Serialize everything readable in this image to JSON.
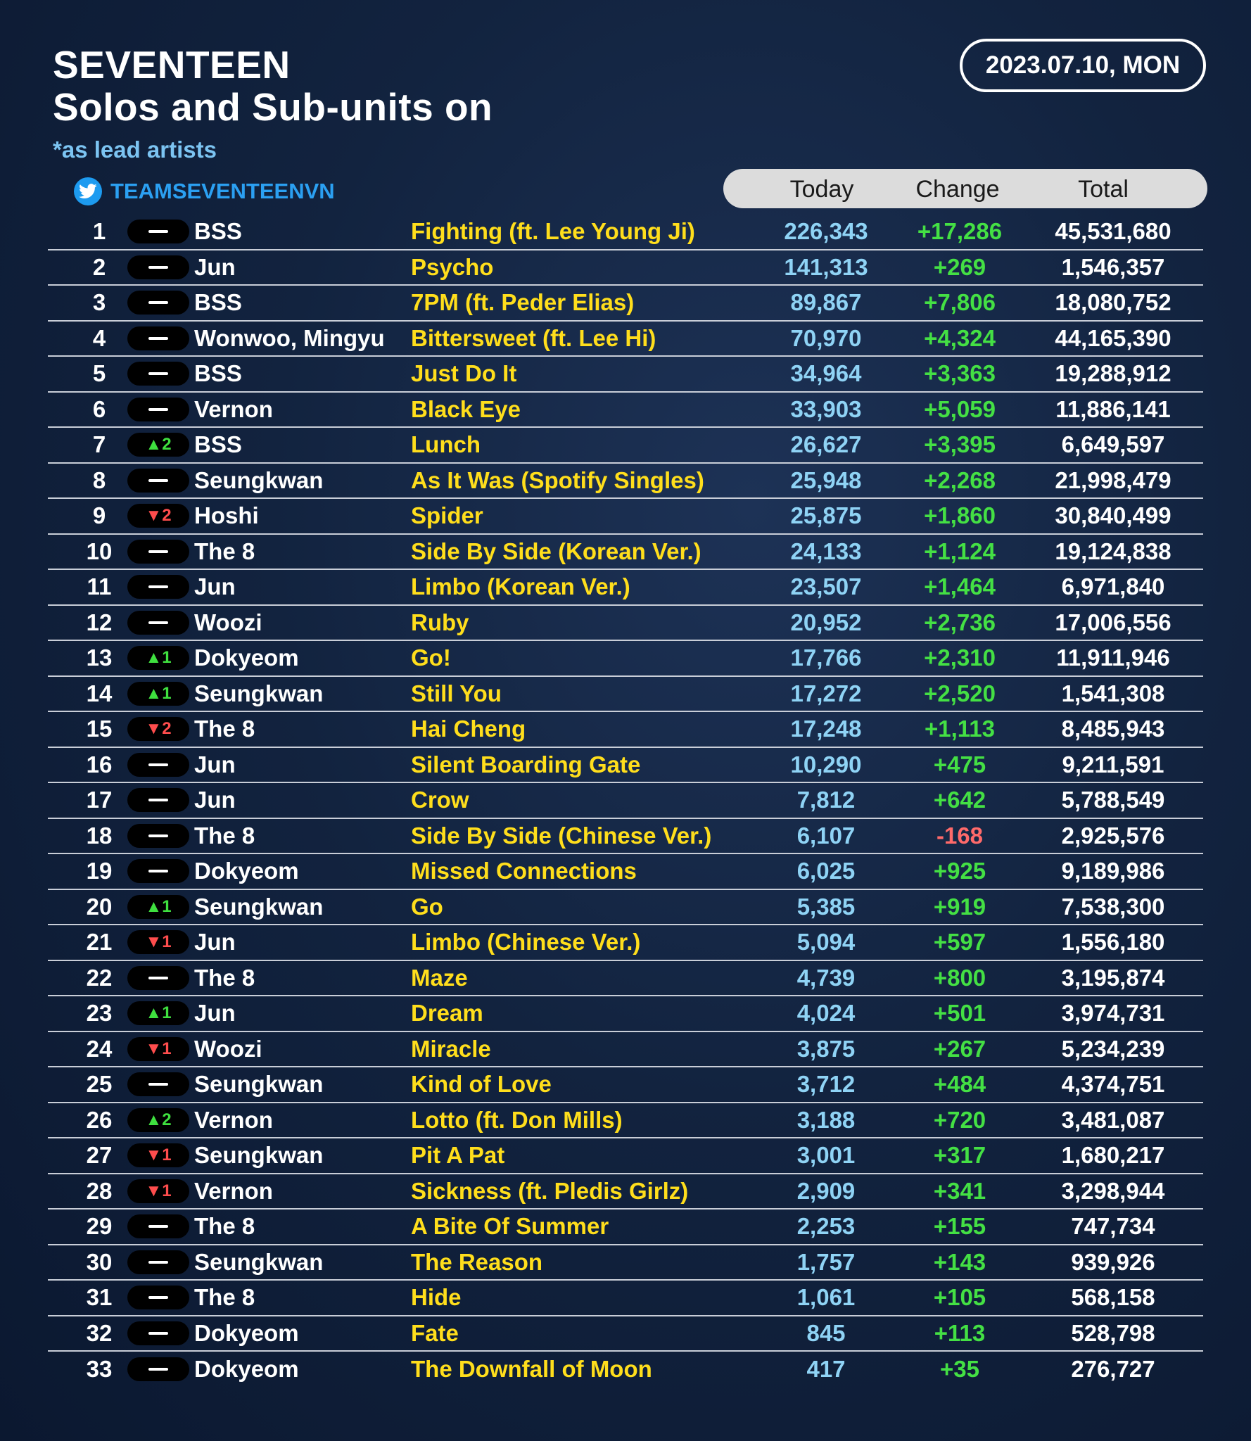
{
  "title": {
    "line1": "SEVENTEEN",
    "line2": "Solos and Sub-units on",
    "note": "*as lead artists"
  },
  "date": "2023.07.10, MON",
  "handle": {
    "icon": "twitter-bird-icon",
    "text": "TEAMSEVENTEENVN"
  },
  "columns": {
    "today": "Today",
    "change": "Change",
    "total": "Total"
  },
  "colors": {
    "song": "#ffde1c",
    "today": "#8fd3f5",
    "change_pos": "#44e044",
    "change_neg": "#ff6a6a",
    "move_up": "#3fe03f",
    "move_down": "#ff4d4d"
  },
  "rows": [
    {
      "rank": "1",
      "move": "",
      "artist": "BSS",
      "song": "Fighting (ft. Lee Young Ji)",
      "today": "226,343",
      "change": "+17,286",
      "total": "45,531,680"
    },
    {
      "rank": "2",
      "move": "",
      "artist": "Jun",
      "song": "Psycho",
      "today": "141,313",
      "change": "+269",
      "total": "1,546,357"
    },
    {
      "rank": "3",
      "move": "",
      "artist": "BSS",
      "song": "7PM (ft. Peder Elias)",
      "today": "89,867",
      "change": "+7,806",
      "total": "18,080,752"
    },
    {
      "rank": "4",
      "move": "",
      "artist": "Wonwoo, Mingyu",
      "song": "Bittersweet (ft. Lee Hi)",
      "today": "70,970",
      "change": "+4,324",
      "total": "44,165,390"
    },
    {
      "rank": "5",
      "move": "",
      "artist": "BSS",
      "song": "Just Do It",
      "today": "34,964",
      "change": "+3,363",
      "total": "19,288,912"
    },
    {
      "rank": "6",
      "move": "",
      "artist": "Vernon",
      "song": "Black Eye",
      "today": "33,903",
      "change": "+5,059",
      "total": "11,886,141"
    },
    {
      "rank": "7",
      "move": "▲2",
      "artist": "BSS",
      "song": "Lunch",
      "today": "26,627",
      "change": "+3,395",
      "total": "6,649,597"
    },
    {
      "rank": "8",
      "move": "",
      "artist": "Seungkwan",
      "song": "As It Was (Spotify Singles)",
      "today": "25,948",
      "change": "+2,268",
      "total": "21,998,479"
    },
    {
      "rank": "9",
      "move": "▼2",
      "artist": "Hoshi",
      "song": "Spider",
      "today": "25,875",
      "change": "+1,860",
      "total": "30,840,499"
    },
    {
      "rank": "10",
      "move": "",
      "artist": "The 8",
      "song": "Side By Side (Korean Ver.)",
      "today": "24,133",
      "change": "+1,124",
      "total": "19,124,838"
    },
    {
      "rank": "11",
      "move": "",
      "artist": "Jun",
      "song": "Limbo (Korean Ver.)",
      "today": "23,507",
      "change": "+1,464",
      "total": "6,971,840"
    },
    {
      "rank": "12",
      "move": "",
      "artist": "Woozi",
      "song": "Ruby",
      "today": "20,952",
      "change": "+2,736",
      "total": "17,006,556"
    },
    {
      "rank": "13",
      "move": "▲1",
      "artist": "Dokyeom",
      "song": "Go!",
      "today": "17,766",
      "change": "+2,310",
      "total": "11,911,946"
    },
    {
      "rank": "14",
      "move": "▲1",
      "artist": "Seungkwan",
      "song": "Still You",
      "today": "17,272",
      "change": "+2,520",
      "total": "1,541,308"
    },
    {
      "rank": "15",
      "move": "▼2",
      "artist": "The 8",
      "song": "Hai Cheng",
      "today": "17,248",
      "change": "+1,113",
      "total": "8,485,943"
    },
    {
      "rank": "16",
      "move": "",
      "artist": "Jun",
      "song": "Silent Boarding Gate",
      "today": "10,290",
      "change": "+475",
      "total": "9,211,591"
    },
    {
      "rank": "17",
      "move": "",
      "artist": "Jun",
      "song": "Crow",
      "today": "7,812",
      "change": "+642",
      "total": "5,788,549"
    },
    {
      "rank": "18",
      "move": "",
      "artist": "The 8",
      "song": "Side By Side (Chinese Ver.)",
      "today": "6,107",
      "change": "-168",
      "total": "2,925,576"
    },
    {
      "rank": "19",
      "move": "",
      "artist": "Dokyeom",
      "song": "Missed Connections",
      "today": "6,025",
      "change": "+925",
      "total": "9,189,986"
    },
    {
      "rank": "20",
      "move": "▲1",
      "artist": "Seungkwan",
      "song": "Go",
      "today": "5,385",
      "change": "+919",
      "total": "7,538,300"
    },
    {
      "rank": "21",
      "move": "▼1",
      "artist": "Jun",
      "song": "Limbo (Chinese Ver.)",
      "today": "5,094",
      "change": "+597",
      "total": "1,556,180"
    },
    {
      "rank": "22",
      "move": "",
      "artist": "The 8",
      "song": "Maze",
      "today": "4,739",
      "change": "+800",
      "total": "3,195,874"
    },
    {
      "rank": "23",
      "move": "▲1",
      "artist": "Jun",
      "song": "Dream",
      "today": "4,024",
      "change": "+501",
      "total": "3,974,731"
    },
    {
      "rank": "24",
      "move": "▼1",
      "artist": "Woozi",
      "song": "Miracle",
      "today": "3,875",
      "change": "+267",
      "total": "5,234,239"
    },
    {
      "rank": "25",
      "move": "",
      "artist": "Seungkwan",
      "song": "Kind of Love",
      "today": "3,712",
      "change": "+484",
      "total": "4,374,751"
    },
    {
      "rank": "26",
      "move": "▲2",
      "artist": "Vernon",
      "song": "Lotto (ft. Don Mills)",
      "today": "3,188",
      "change": "+720",
      "total": "3,481,087"
    },
    {
      "rank": "27",
      "move": "▼1",
      "artist": "Seungkwan",
      "song": "Pit A Pat",
      "today": "3,001",
      "change": "+317",
      "total": "1,680,217"
    },
    {
      "rank": "28",
      "move": "▼1",
      "artist": "Vernon",
      "song": "Sickness (ft. Pledis Girlz)",
      "today": "2,909",
      "change": "+341",
      "total": "3,298,944"
    },
    {
      "rank": "29",
      "move": "",
      "artist": "The 8",
      "song": "A Bite Of Summer",
      "today": "2,253",
      "change": "+155",
      "total": "747,734"
    },
    {
      "rank": "30",
      "move": "",
      "artist": "Seungkwan",
      "song": "The Reason",
      "today": "1,757",
      "change": "+143",
      "total": "939,926"
    },
    {
      "rank": "31",
      "move": "",
      "artist": "The 8",
      "song": "Hide",
      "today": "1,061",
      "change": "+105",
      "total": "568,158"
    },
    {
      "rank": "32",
      "move": "",
      "artist": "Dokyeom",
      "song": "Fate",
      "today": "845",
      "change": "+113",
      "total": "528,798"
    },
    {
      "rank": "33",
      "move": "",
      "artist": "Dokyeom",
      "song": "The Downfall of Moon",
      "today": "417",
      "change": "+35",
      "total": "276,727"
    }
  ]
}
